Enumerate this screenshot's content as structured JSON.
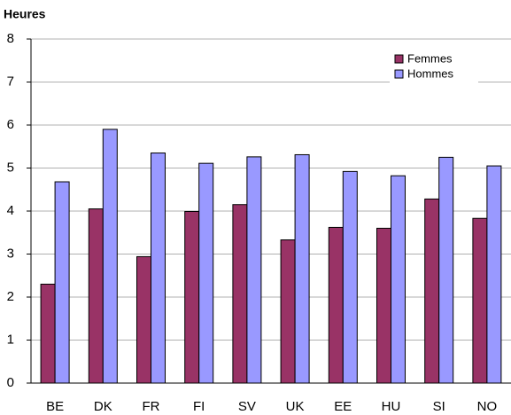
{
  "chart_data": {
    "type": "bar",
    "y_label": "Heures",
    "categories": [
      "BE",
      "DK",
      "FR",
      "FI",
      "SV",
      "UK",
      "EE",
      "HU",
      "SI",
      "NO"
    ],
    "series": [
      {
        "name": "Femmes",
        "color": "#993366",
        "values": [
          2.3,
          4.05,
          2.94,
          3.99,
          4.15,
          3.33,
          3.62,
          3.6,
          4.28,
          3.83
        ]
      },
      {
        "name": "Hommes",
        "color": "#9999ff",
        "values": [
          4.68,
          5.9,
          5.35,
          5.11,
          5.26,
          5.31,
          4.92,
          4.82,
          5.25,
          5.05
        ]
      }
    ],
    "ylim": [
      0,
      8
    ],
    "yticks": [
      0,
      1,
      2,
      3,
      4,
      5,
      6,
      7,
      8
    ],
    "grid": true,
    "legend": "top-right"
  }
}
